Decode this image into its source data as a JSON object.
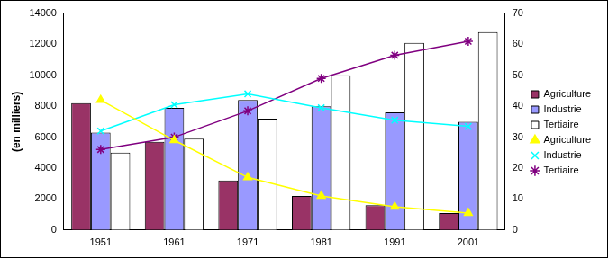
{
  "chart_data": {
    "type": "bar",
    "y_label": "(en milliers)",
    "categories": [
      "1951",
      "1961",
      "1971",
      "1981",
      "1991",
      "2001"
    ],
    "ylim": [
      0,
      14000
    ],
    "yticks": [
      0,
      2000,
      4000,
      6000,
      8000,
      10000,
      12000,
      14000
    ],
    "y2lim": [
      0,
      70
    ],
    "y2ticks": [
      0,
      10,
      20,
      30,
      40,
      50,
      60,
      70
    ],
    "grid": false,
    "legend": "right",
    "series": [
      {
        "name": "Agriculture",
        "type": "bar",
        "color": "#993366",
        "values": [
          8200,
          5700,
          3200,
          2200,
          1600,
          1100
        ]
      },
      {
        "name": "Industrie",
        "type": "bar",
        "color": "#9999ff",
        "values": [
          6300,
          7900,
          8400,
          8000,
          7600,
          7000
        ]
      },
      {
        "name": "Tertiaire",
        "type": "bar",
        "color": "#ffffff",
        "values": [
          5000,
          5900,
          7200,
          10000,
          12100,
          12800
        ]
      },
      {
        "name": "Agriculture",
        "type": "line",
        "axis": "y2",
        "color": "#ffff00",
        "marker": "triangle",
        "values": [
          42,
          29,
          17,
          11,
          7.5,
          5.5
        ]
      },
      {
        "name": "Industrie",
        "type": "line",
        "axis": "y2",
        "color": "#00ffff",
        "marker": "x",
        "values": [
          32,
          40.5,
          44,
          39.5,
          35.5,
          33.5
        ]
      },
      {
        "name": "Tertiaire",
        "type": "line",
        "axis": "y2",
        "color": "#800080",
        "marker": "star",
        "values": [
          26,
          30,
          38.5,
          49,
          56.5,
          61
        ]
      }
    ]
  }
}
